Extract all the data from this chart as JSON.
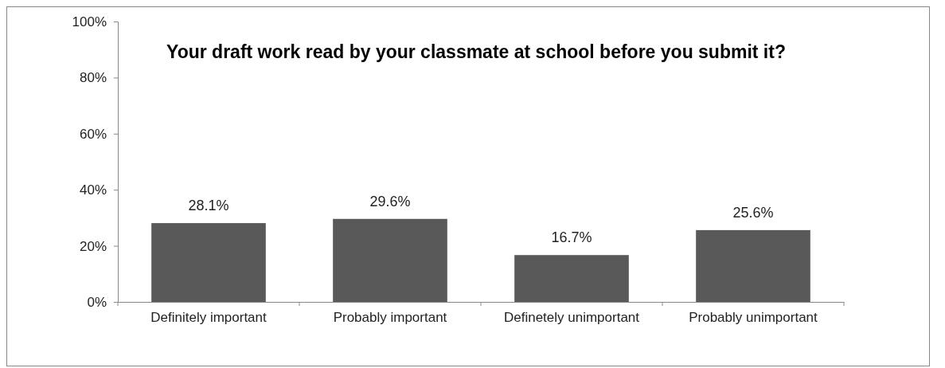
{
  "chart_data": {
    "type": "bar",
    "title": "Your draft work read by your classmate at school before you submit it?",
    "categories": [
      "Definitely important",
      "Probably important",
      "Definetely unimportant",
      "Probably unimportant"
    ],
    "values": [
      28.1,
      29.6,
      16.7,
      25.6
    ],
    "value_labels": [
      "28.1%",
      "29.6%",
      "16.7%",
      "25.6%"
    ],
    "color": "#595959",
    "ylim": [
      0,
      100
    ],
    "yticks": [
      {
        "value": 0,
        "label": "0%"
      },
      {
        "value": 20,
        "label": "20%"
      },
      {
        "value": 40,
        "label": "40%"
      },
      {
        "value": 60,
        "label": "60%"
      },
      {
        "value": 80,
        "label": "80%"
      },
      {
        "value": 100,
        "label": "100%"
      }
    ],
    "grid": false
  }
}
